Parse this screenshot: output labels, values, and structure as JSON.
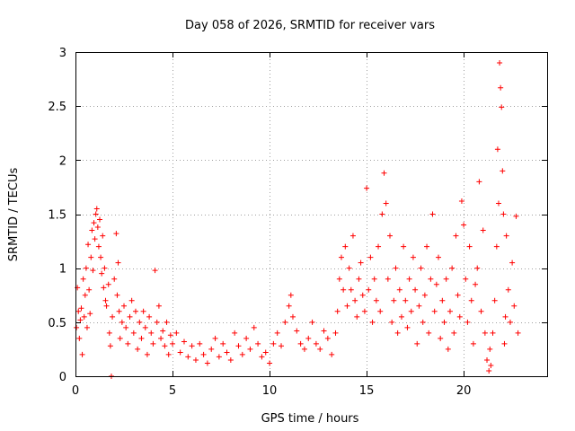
{
  "chart_data": {
    "type": "scatter",
    "title": "Day 058 of 2026, SRMTID for receiver vars",
    "xlabel": "GPS time / hours",
    "ylabel": "SRMTID / TECUs",
    "xlim": [
      0,
      24.3
    ],
    "ylim": [
      0,
      3
    ],
    "xticks": [
      0,
      5,
      10,
      15,
      20
    ],
    "xtick_labels": [
      "0",
      "5",
      "10",
      "15",
      "20"
    ],
    "yticks": [
      0,
      0.5,
      1,
      1.5,
      2,
      2.5,
      3
    ],
    "ytick_labels": [
      "0",
      "0.5",
      "1",
      "1.5",
      "2",
      "2.5",
      "3"
    ],
    "grid": true,
    "marker": "plus",
    "color": "#ff0000",
    "series": [
      {
        "name": "SRMTID",
        "points": [
          [
            0.05,
            0.45
          ],
          [
            0.1,
            0.82
          ],
          [
            0.15,
            0.6
          ],
          [
            0.2,
            0.35
          ],
          [
            0.25,
            0.52
          ],
          [
            0.3,
            0.63
          ],
          [
            0.35,
            0.2
          ],
          [
            0.4,
            0.9
          ],
          [
            0.45,
            0.55
          ],
          [
            0.5,
            0.75
          ],
          [
            0.55,
            1.0
          ],
          [
            0.6,
            0.45
          ],
          [
            0.65,
            1.22
          ],
          [
            0.7,
            0.8
          ],
          [
            0.75,
            0.58
          ],
          [
            0.8,
            1.1
          ],
          [
            0.85,
            1.35
          ],
          [
            0.9,
            0.98
          ],
          [
            0.95,
            1.42
          ],
          [
            1.0,
            1.27
          ],
          [
            1.05,
            1.5
          ],
          [
            1.1,
            1.55
          ],
          [
            1.15,
            1.38
          ],
          [
            1.2,
            1.2
          ],
          [
            1.25,
            1.45
          ],
          [
            1.3,
            1.1
          ],
          [
            1.35,
            0.95
          ],
          [
            1.4,
            1.3
          ],
          [
            1.45,
            0.82
          ],
          [
            1.5,
            1.0
          ],
          [
            1.55,
            0.7
          ],
          [
            1.6,
            0.65
          ],
          [
            1.7,
            0.85
          ],
          [
            1.75,
            0.4
          ],
          [
            1.8,
            0.28
          ],
          [
            1.85,
            0.0
          ],
          [
            1.9,
            0.55
          ],
          [
            2.0,
            0.9
          ],
          [
            2.1,
            1.32
          ],
          [
            2.15,
            0.75
          ],
          [
            2.2,
            1.05
          ],
          [
            2.25,
            0.6
          ],
          [
            2.3,
            0.35
          ],
          [
            2.4,
            0.5
          ],
          [
            2.5,
            0.65
          ],
          [
            2.6,
            0.45
          ],
          [
            2.7,
            0.3
          ],
          [
            2.8,
            0.55
          ],
          [
            2.9,
            0.7
          ],
          [
            3.0,
            0.4
          ],
          [
            3.1,
            0.6
          ],
          [
            3.2,
            0.25
          ],
          [
            3.3,
            0.5
          ],
          [
            3.4,
            0.35
          ],
          [
            3.5,
            0.6
          ],
          [
            3.6,
            0.45
          ],
          [
            3.7,
            0.2
          ],
          [
            3.8,
            0.55
          ],
          [
            3.9,
            0.4
          ],
          [
            4.0,
            0.3
          ],
          [
            4.1,
            0.98
          ],
          [
            4.2,
            0.5
          ],
          [
            4.3,
            0.65
          ],
          [
            4.4,
            0.35
          ],
          [
            4.5,
            0.42
          ],
          [
            4.6,
            0.28
          ],
          [
            4.7,
            0.5
          ],
          [
            4.8,
            0.2
          ],
          [
            4.9,
            0.38
          ],
          [
            5.0,
            0.3
          ],
          [
            5.2,
            0.4
          ],
          [
            5.4,
            0.22
          ],
          [
            5.6,
            0.32
          ],
          [
            5.8,
            0.18
          ],
          [
            6.0,
            0.28
          ],
          [
            6.2,
            0.15
          ],
          [
            6.4,
            0.3
          ],
          [
            6.6,
            0.2
          ],
          [
            6.8,
            0.12
          ],
          [
            7.0,
            0.25
          ],
          [
            7.2,
            0.35
          ],
          [
            7.4,
            0.18
          ],
          [
            7.6,
            0.3
          ],
          [
            7.8,
            0.22
          ],
          [
            8.0,
            0.15
          ],
          [
            8.2,
            0.4
          ],
          [
            8.4,
            0.28
          ],
          [
            8.6,
            0.2
          ],
          [
            8.8,
            0.35
          ],
          [
            9.0,
            0.25
          ],
          [
            9.2,
            0.45
          ],
          [
            9.4,
            0.3
          ],
          [
            9.6,
            0.18
          ],
          [
            9.8,
            0.22
          ],
          [
            10.0,
            0.12
          ],
          [
            10.2,
            0.3
          ],
          [
            10.4,
            0.4
          ],
          [
            10.6,
            0.28
          ],
          [
            10.8,
            0.5
          ],
          [
            11.0,
            0.65
          ],
          [
            11.1,
            0.75
          ],
          [
            11.2,
            0.55
          ],
          [
            11.4,
            0.42
          ],
          [
            11.6,
            0.3
          ],
          [
            11.8,
            0.25
          ],
          [
            12.0,
            0.35
          ],
          [
            12.2,
            0.5
          ],
          [
            12.4,
            0.3
          ],
          [
            12.6,
            0.25
          ],
          [
            12.8,
            0.42
          ],
          [
            13.0,
            0.35
          ],
          [
            13.2,
            0.2
          ],
          [
            13.4,
            0.4
          ],
          [
            13.5,
            0.6
          ],
          [
            13.6,
            0.9
          ],
          [
            13.7,
            1.1
          ],
          [
            13.8,
            0.8
          ],
          [
            13.9,
            1.2
          ],
          [
            14.0,
            0.65
          ],
          [
            14.1,
            1.0
          ],
          [
            14.2,
            0.8
          ],
          [
            14.3,
            1.3
          ],
          [
            14.4,
            0.7
          ],
          [
            14.5,
            0.55
          ],
          [
            14.6,
            0.9
          ],
          [
            14.7,
            1.05
          ],
          [
            14.8,
            0.75
          ],
          [
            14.9,
            0.6
          ],
          [
            15.0,
            1.74
          ],
          [
            15.1,
            0.8
          ],
          [
            15.2,
            1.1
          ],
          [
            15.3,
            0.5
          ],
          [
            15.4,
            0.9
          ],
          [
            15.5,
            0.7
          ],
          [
            15.6,
            1.2
          ],
          [
            15.7,
            0.6
          ],
          [
            15.8,
            1.5
          ],
          [
            15.9,
            1.88
          ],
          [
            16.0,
            1.6
          ],
          [
            16.1,
            0.9
          ],
          [
            16.2,
            1.3
          ],
          [
            16.3,
            0.5
          ],
          [
            16.4,
            0.7
          ],
          [
            16.5,
            1.0
          ],
          [
            16.6,
            0.4
          ],
          [
            16.7,
            0.8
          ],
          [
            16.8,
            0.55
          ],
          [
            16.9,
            1.2
          ],
          [
            17.0,
            0.7
          ],
          [
            17.1,
            0.45
          ],
          [
            17.2,
            0.9
          ],
          [
            17.3,
            0.6
          ],
          [
            17.4,
            1.1
          ],
          [
            17.5,
            0.8
          ],
          [
            17.6,
            0.3
          ],
          [
            17.7,
            0.65
          ],
          [
            17.8,
            1.0
          ],
          [
            17.9,
            0.5
          ],
          [
            18.0,
            0.75
          ],
          [
            18.1,
            1.2
          ],
          [
            18.2,
            0.4
          ],
          [
            18.3,
            0.9
          ],
          [
            18.4,
            1.5
          ],
          [
            18.5,
            0.6
          ],
          [
            18.6,
            0.85
          ],
          [
            18.7,
            1.1
          ],
          [
            18.8,
            0.35
          ],
          [
            18.9,
            0.7
          ],
          [
            19.0,
            0.5
          ],
          [
            19.1,
            0.9
          ],
          [
            19.2,
            0.25
          ],
          [
            19.3,
            0.6
          ],
          [
            19.4,
            1.0
          ],
          [
            19.5,
            0.4
          ],
          [
            19.6,
            1.3
          ],
          [
            19.7,
            0.75
          ],
          [
            19.8,
            0.55
          ],
          [
            19.9,
            1.62
          ],
          [
            20.0,
            1.4
          ],
          [
            20.1,
            0.9
          ],
          [
            20.2,
            0.5
          ],
          [
            20.3,
            1.2
          ],
          [
            20.4,
            0.7
          ],
          [
            20.5,
            0.3
          ],
          [
            20.6,
            0.85
          ],
          [
            20.7,
            1.0
          ],
          [
            20.8,
            1.8
          ],
          [
            20.9,
            0.6
          ],
          [
            21.0,
            1.35
          ],
          [
            21.1,
            0.4
          ],
          [
            21.2,
            0.15
          ],
          [
            21.3,
            0.05
          ],
          [
            21.35,
            0.25
          ],
          [
            21.4,
            0.1
          ],
          [
            21.5,
            0.4
          ],
          [
            21.6,
            0.7
          ],
          [
            21.7,
            1.2
          ],
          [
            21.75,
            2.1
          ],
          [
            21.8,
            1.6
          ],
          [
            21.85,
            2.9
          ],
          [
            21.9,
            2.67
          ],
          [
            21.95,
            2.49
          ],
          [
            22.0,
            1.9
          ],
          [
            22.05,
            1.5
          ],
          [
            22.1,
            0.3
          ],
          [
            22.15,
            0.55
          ],
          [
            22.2,
            1.3
          ],
          [
            22.3,
            0.8
          ],
          [
            22.4,
            0.5
          ],
          [
            22.5,
            1.05
          ],
          [
            22.6,
            0.65
          ],
          [
            22.7,
            1.48
          ],
          [
            22.8,
            0.4
          ]
        ]
      }
    ]
  }
}
